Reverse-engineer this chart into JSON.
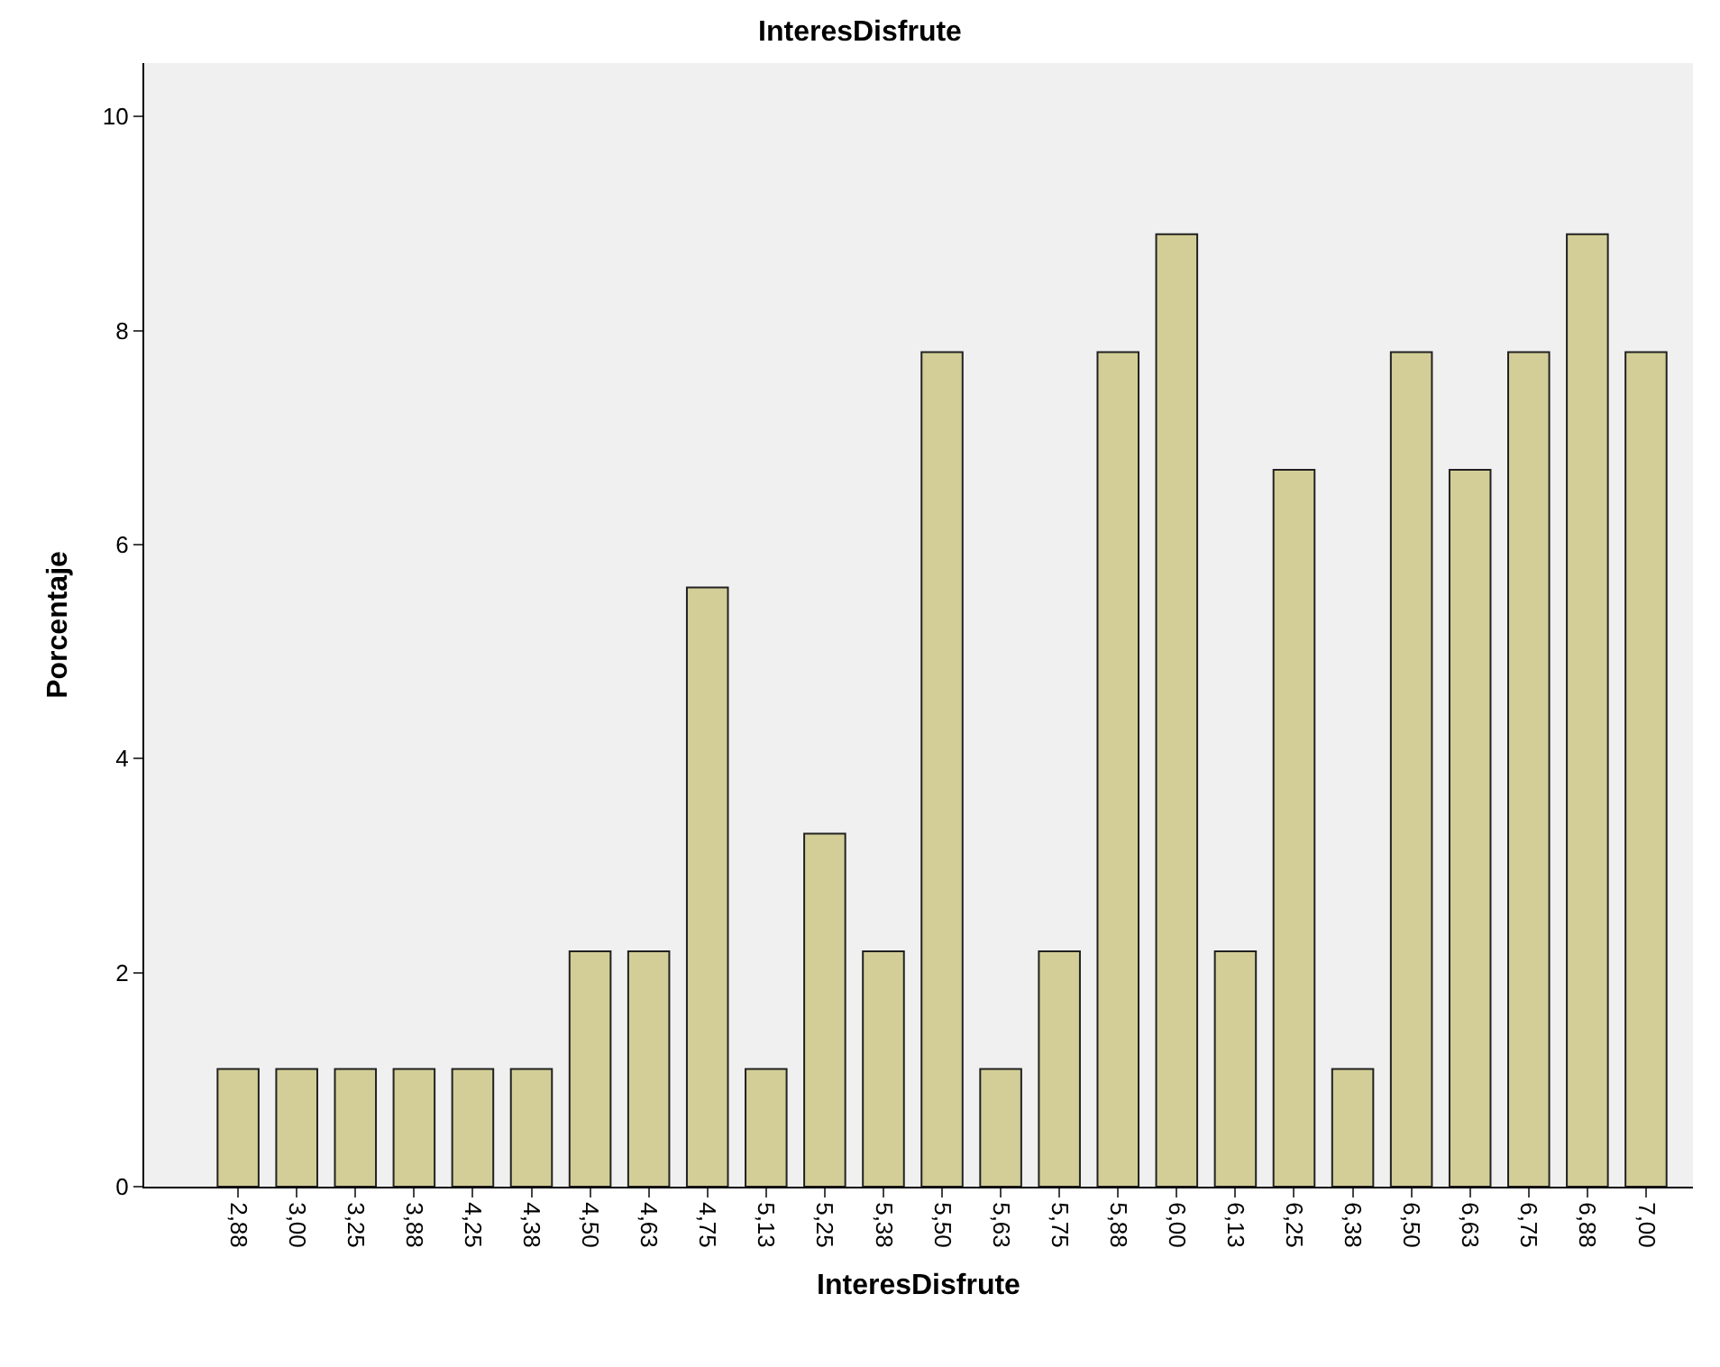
{
  "chart_data": {
    "type": "bar",
    "title": "InteresDisfrute",
    "xlabel": "InteresDisfrute",
    "ylabel": "Porcentaje",
    "categories": [
      "2,88",
      "3,00",
      "3,25",
      "3,88",
      "4,25",
      "4,38",
      "4,50",
      "4,63",
      "4,75",
      "5,13",
      "5,25",
      "5,38",
      "5,50",
      "5,63",
      "5,75",
      "5,88",
      "6,00",
      "6,13",
      "6,25",
      "6,38",
      "6,50",
      "6,63",
      "6,75",
      "6,88",
      "7,00"
    ],
    "values": [
      1.1,
      1.1,
      1.1,
      1.1,
      1.1,
      1.1,
      2.2,
      2.2,
      5.6,
      1.1,
      3.3,
      2.2,
      7.8,
      1.1,
      2.2,
      7.8,
      8.9,
      2.2,
      6.7,
      1.1,
      7.8,
      6.7,
      7.8,
      8.9,
      7.8
    ],
    "color": "#d3ce97",
    "ylim": [
      0,
      10.5
    ],
    "yticks": [
      0,
      2,
      4,
      6,
      8,
      10
    ],
    "grid": false,
    "legend": false
  }
}
